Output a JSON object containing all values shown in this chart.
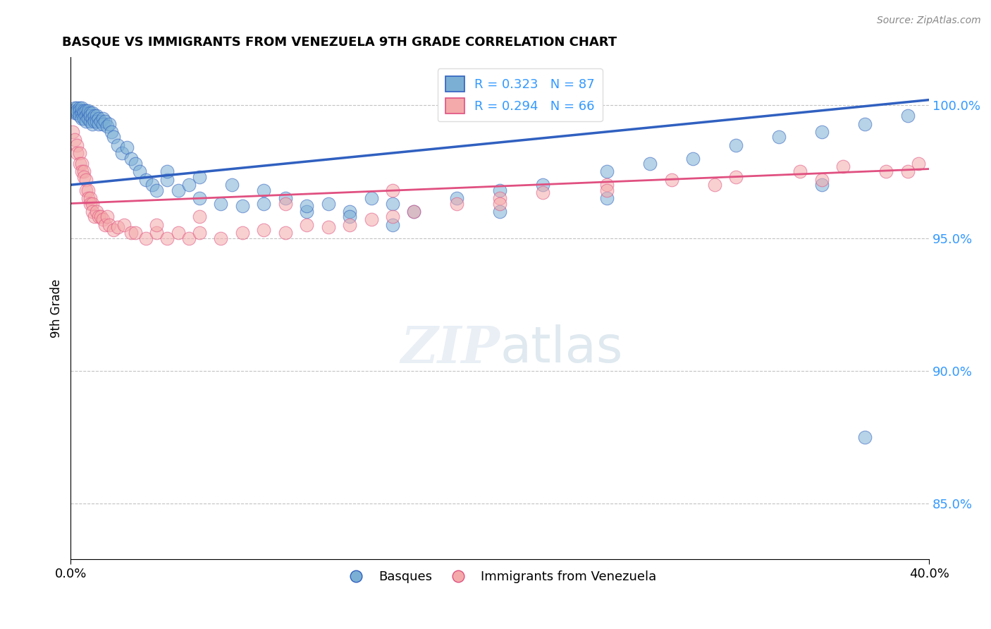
{
  "title": "BASQUE VS IMMIGRANTS FROM VENEZUELA 9TH GRADE CORRELATION CHART",
  "source": "Source: ZipAtlas.com",
  "ylabel": "9th Grade",
  "y_tick_labels": [
    "85.0%",
    "90.0%",
    "95.0%",
    "100.0%"
  ],
  "y_tick_values": [
    0.85,
    0.9,
    0.95,
    1.0
  ],
  "x_min": 0.0,
  "x_max": 0.4,
  "y_min": 0.829,
  "y_max": 1.018,
  "blue_R": 0.323,
  "blue_N": 87,
  "pink_R": 0.294,
  "pink_N": 66,
  "blue_color": "#7BAFD4",
  "pink_color": "#F4AAAA",
  "blue_line_color": "#3060C0",
  "pink_line_color": "#E05080",
  "legend_label_blue": "Basques",
  "legend_label_pink": "Immigrants from Venezuela",
  "blue_line_x0": 0.0,
  "blue_line_y0": 0.97,
  "blue_line_x1": 0.4,
  "blue_line_y1": 1.002,
  "pink_line_x0": 0.0,
  "pink_line_y0": 0.963,
  "pink_line_x1": 0.4,
  "pink_line_y1": 0.976,
  "blue_x": [
    0.001,
    0.002,
    0.002,
    0.003,
    0.003,
    0.003,
    0.004,
    0.004,
    0.004,
    0.005,
    0.005,
    0.005,
    0.005,
    0.006,
    0.006,
    0.006,
    0.007,
    0.007,
    0.007,
    0.008,
    0.008,
    0.008,
    0.009,
    0.009,
    0.009,
    0.01,
    0.01,
    0.01,
    0.011,
    0.011,
    0.012,
    0.012,
    0.013,
    0.013,
    0.014,
    0.015,
    0.015,
    0.016,
    0.017,
    0.018,
    0.019,
    0.02,
    0.022,
    0.024,
    0.026,
    0.028,
    0.03,
    0.032,
    0.035,
    0.038,
    0.04,
    0.045,
    0.05,
    0.055,
    0.06,
    0.07,
    0.08,
    0.09,
    0.1,
    0.11,
    0.12,
    0.13,
    0.14,
    0.15,
    0.16,
    0.18,
    0.2,
    0.22,
    0.25,
    0.27,
    0.29,
    0.31,
    0.33,
    0.35,
    0.37,
    0.39,
    0.045,
    0.06,
    0.075,
    0.09,
    0.11,
    0.13,
    0.15,
    0.2,
    0.25,
    0.35,
    0.37
  ],
  "blue_y": [
    0.998,
    0.999,
    0.997,
    0.999,
    0.997,
    0.998,
    0.999,
    0.998,
    0.996,
    0.998,
    0.997,
    0.999,
    0.995,
    0.998,
    0.997,
    0.995,
    0.998,
    0.996,
    0.994,
    0.997,
    0.995,
    0.998,
    0.997,
    0.994,
    0.996,
    0.997,
    0.995,
    0.993,
    0.996,
    0.994,
    0.996,
    0.994,
    0.995,
    0.993,
    0.994,
    0.995,
    0.993,
    0.994,
    0.992,
    0.993,
    0.99,
    0.988,
    0.985,
    0.982,
    0.984,
    0.98,
    0.978,
    0.975,
    0.972,
    0.97,
    0.968,
    0.972,
    0.968,
    0.97,
    0.965,
    0.963,
    0.962,
    0.963,
    0.965,
    0.96,
    0.963,
    0.96,
    0.965,
    0.963,
    0.96,
    0.965,
    0.968,
    0.97,
    0.975,
    0.978,
    0.98,
    0.985,
    0.988,
    0.99,
    0.993,
    0.996,
    0.975,
    0.973,
    0.97,
    0.968,
    0.962,
    0.958,
    0.955,
    0.96,
    0.965,
    0.97,
    0.875
  ],
  "pink_x": [
    0.001,
    0.002,
    0.003,
    0.003,
    0.004,
    0.004,
    0.005,
    0.005,
    0.006,
    0.006,
    0.007,
    0.007,
    0.008,
    0.008,
    0.009,
    0.009,
    0.01,
    0.01,
    0.011,
    0.012,
    0.013,
    0.014,
    0.015,
    0.016,
    0.017,
    0.018,
    0.02,
    0.022,
    0.025,
    0.028,
    0.03,
    0.035,
    0.04,
    0.045,
    0.05,
    0.055,
    0.06,
    0.07,
    0.08,
    0.09,
    0.1,
    0.11,
    0.12,
    0.13,
    0.14,
    0.15,
    0.16,
    0.18,
    0.2,
    0.22,
    0.25,
    0.28,
    0.31,
    0.34,
    0.36,
    0.38,
    0.395,
    0.04,
    0.06,
    0.1,
    0.15,
    0.2,
    0.25,
    0.3,
    0.35,
    0.39
  ],
  "pink_y": [
    0.99,
    0.987,
    0.985,
    0.982,
    0.982,
    0.978,
    0.978,
    0.975,
    0.975,
    0.973,
    0.972,
    0.968,
    0.968,
    0.965,
    0.965,
    0.963,
    0.963,
    0.96,
    0.958,
    0.96,
    0.958,
    0.958,
    0.957,
    0.955,
    0.958,
    0.955,
    0.953,
    0.954,
    0.955,
    0.952,
    0.952,
    0.95,
    0.952,
    0.95,
    0.952,
    0.95,
    0.952,
    0.95,
    0.952,
    0.953,
    0.952,
    0.955,
    0.954,
    0.955,
    0.957,
    0.958,
    0.96,
    0.963,
    0.965,
    0.967,
    0.97,
    0.972,
    0.973,
    0.975,
    0.977,
    0.975,
    0.978,
    0.955,
    0.958,
    0.963,
    0.968,
    0.963,
    0.968,
    0.97,
    0.972,
    0.975
  ]
}
